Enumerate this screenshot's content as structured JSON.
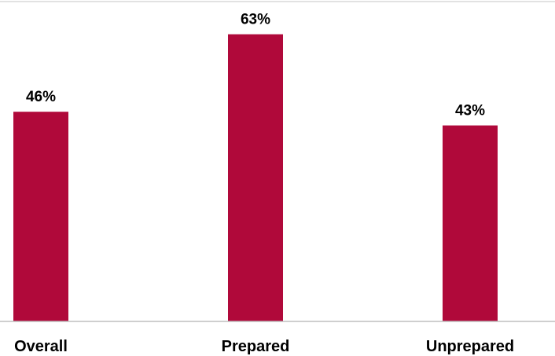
{
  "chart_data": {
    "type": "bar",
    "categories": [
      "Overall",
      "Prepared",
      "Unprepared"
    ],
    "values": [
      46,
      63,
      43
    ],
    "value_labels": [
      "46%",
      "63%",
      "43%"
    ],
    "ylim": [
      0,
      70
    ],
    "grid": false,
    "legend": "none",
    "bar_color": "#B0093A",
    "axis_color": "#BFBFBF"
  }
}
